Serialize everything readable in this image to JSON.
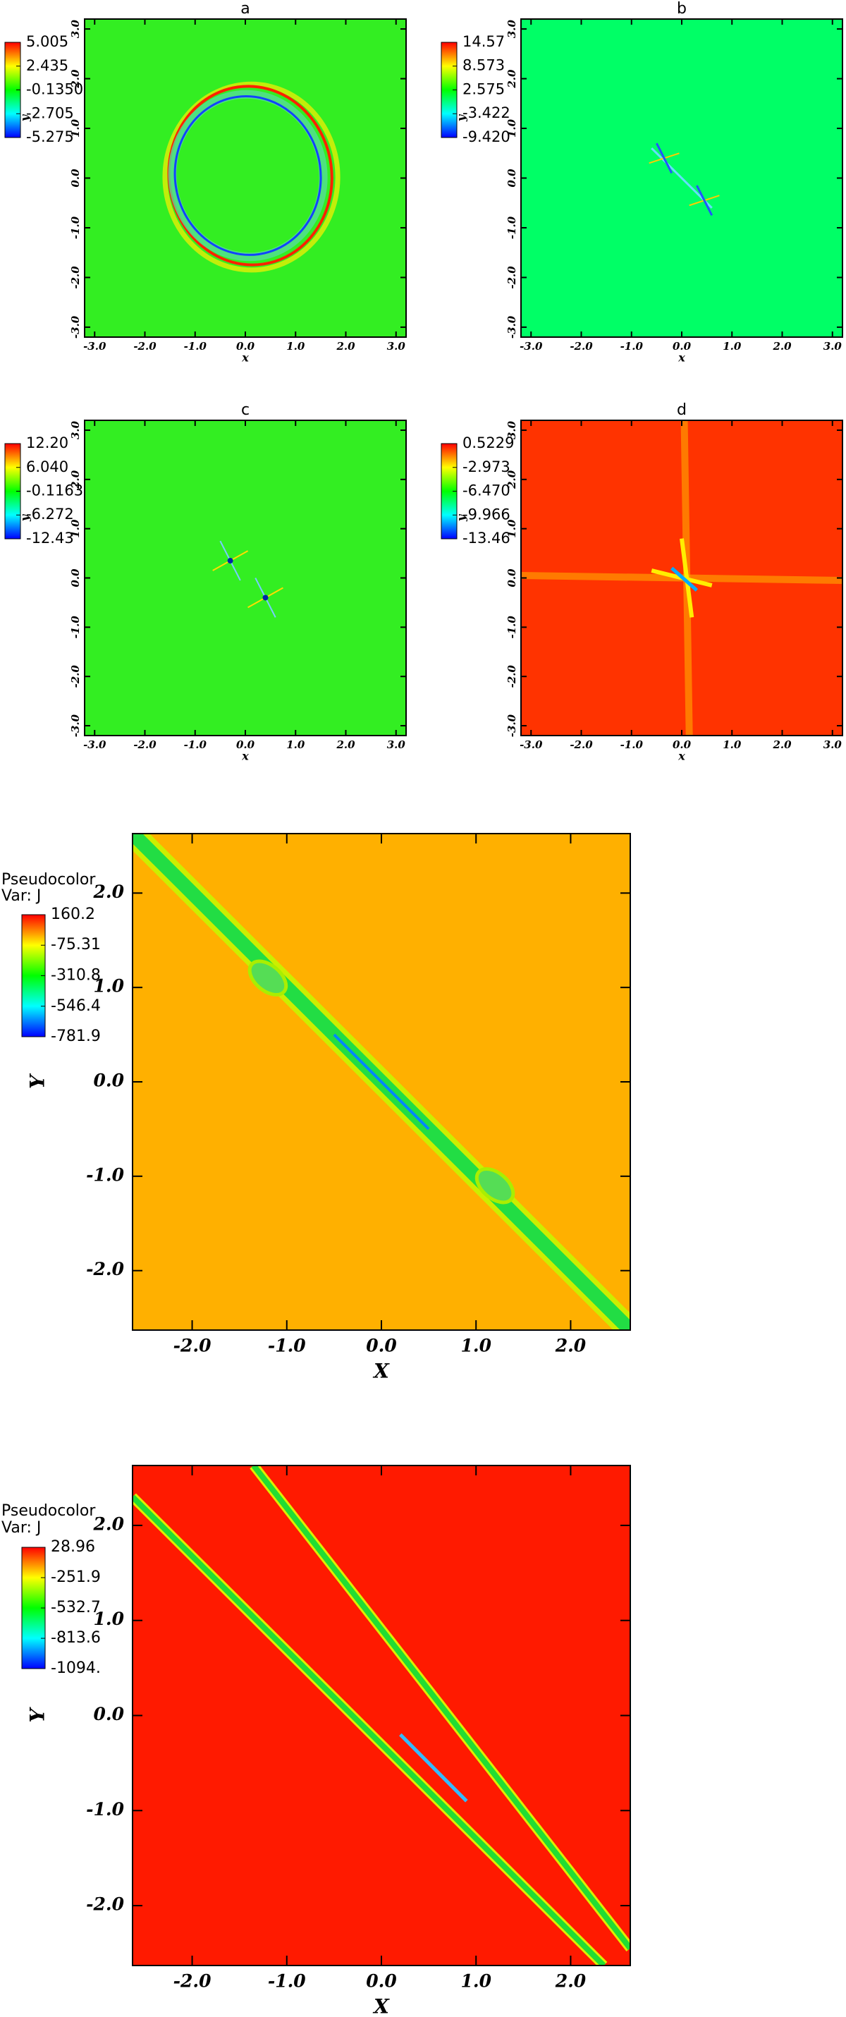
{
  "chart_data": [
    {
      "type": "heatmap",
      "title": "a",
      "x_label": "x",
      "y_label": "y",
      "color": "#33ee22",
      "xlim": [
        -3.2,
        3.2
      ],
      "ylim": [
        -3.2,
        3.2
      ],
      "xticks": [
        {
          "value": -3,
          "label": "-3.0"
        },
        {
          "value": -2,
          "label": "-2.0"
        },
        {
          "value": -1,
          "label": "-1.0"
        },
        {
          "value": 0,
          "label": "0.0"
        },
        {
          "value": 1,
          "label": "1.0"
        },
        {
          "value": 2,
          "label": "2.0"
        },
        {
          "value": 3,
          "label": "3.0"
        }
      ],
      "yticks": [
        {
          "value": -3,
          "label": "-3.0"
        },
        {
          "value": -2,
          "label": "-2.0"
        },
        {
          "value": -1,
          "label": "-1.0"
        },
        {
          "value": 0,
          "label": "0.0"
        },
        {
          "value": 1,
          "label": "1.0"
        },
        {
          "value": 2,
          "label": "2.0"
        },
        {
          "value": 3,
          "label": "3.0"
        }
      ],
      "colorbar_ticks": [
        5.005,
        2.435,
        {
          "value": -0.135,
          "label": "-0.1350"
        },
        -2.705,
        -5.275
      ]
    },
    {
      "type": "heatmap",
      "title": "b",
      "x_label": "x",
      "y_label": "y",
      "color": "#00ff66",
      "xlim": [
        -3.2,
        3.2
      ],
      "ylim": [
        -3.2,
        3.2
      ],
      "xticks": [
        {
          "value": -3,
          "label": "-3.0"
        },
        {
          "value": -2,
          "label": "-2.0"
        },
        {
          "value": -1,
          "label": "-1.0"
        },
        {
          "value": 0,
          "label": "0.0"
        },
        {
          "value": 1,
          "label": "1.0"
        },
        {
          "value": 2,
          "label": "2.0"
        },
        {
          "value": 3,
          "label": "3.0"
        }
      ],
      "yticks": [
        {
          "value": -3,
          "label": "-3.0"
        },
        {
          "value": -2,
          "label": "-2.0"
        },
        {
          "value": -1,
          "label": "-1.0"
        },
        {
          "value": 0,
          "label": "0.0"
        },
        {
          "value": 1,
          "label": "1.0"
        },
        {
          "value": 2,
          "label": "2.0"
        },
        {
          "value": 3,
          "label": "3.0"
        }
      ],
      "colorbar_ticks": [
        14.57,
        8.573,
        2.575,
        -3.422,
        {
          "value": -9.42,
          "label": "-9.420"
        }
      ]
    },
    {
      "type": "heatmap",
      "title": "c",
      "x_label": "x",
      "y_label": "y",
      "color": "#33ee22",
      "xlim": [
        -3.2,
        3.2
      ],
      "ylim": [
        -3.2,
        3.2
      ],
      "xticks": [
        {
          "value": -3,
          "label": "-3.0"
        },
        {
          "value": -2,
          "label": "-2.0"
        },
        {
          "value": -1,
          "label": "-1.0"
        },
        {
          "value": 0,
          "label": "0.0"
        },
        {
          "value": 1,
          "label": "1.0"
        },
        {
          "value": 2,
          "label": "2.0"
        },
        {
          "value": 3,
          "label": "3.0"
        }
      ],
      "yticks": [
        {
          "value": -3,
          "label": "-3.0"
        },
        {
          "value": -2,
          "label": "-2.0"
        },
        {
          "value": -1,
          "label": "-1.0"
        },
        {
          "value": 0,
          "label": "0.0"
        },
        {
          "value": 1,
          "label": "1.0"
        },
        {
          "value": 2,
          "label": "2.0"
        },
        {
          "value": 3,
          "label": "3.0"
        }
      ],
      "colorbar_ticks": [
        {
          "value": 12.2,
          "label": "12.20"
        },
        {
          "value": 6.04,
          "label": "6.040"
        },
        -0.1163,
        -6.272,
        -12.43
      ]
    },
    {
      "type": "heatmap",
      "title": "d",
      "x_label": "x",
      "y_label": "y",
      "color": "#ff3300",
      "xlim": [
        -3.2,
        3.2
      ],
      "ylim": [
        -3.2,
        3.2
      ],
      "xticks": [
        {
          "value": -3,
          "label": "-3.0"
        },
        {
          "value": -2,
          "label": "-2.0"
        },
        {
          "value": -1,
          "label": "-1.0"
        },
        {
          "value": 0,
          "label": "0.0"
        },
        {
          "value": 1,
          "label": "1.0"
        },
        {
          "value": 2,
          "label": "2.0"
        },
        {
          "value": 3,
          "label": "3.0"
        }
      ],
      "yticks": [
        {
          "value": -3,
          "label": "-3.0"
        },
        {
          "value": -2,
          "label": "-2.0"
        },
        {
          "value": -1,
          "label": "-1.0"
        },
        {
          "value": 0,
          "label": "0.0"
        },
        {
          "value": 1,
          "label": "1.0"
        },
        {
          "value": 2,
          "label": "2.0"
        },
        {
          "value": 3,
          "label": "3.0"
        }
      ],
      "colorbar_ticks": [
        0.5229,
        -2.973,
        {
          "value": -6.47,
          "label": "-6.470"
        },
        -9.966,
        -13.46
      ]
    },
    {
      "type": "heatmap",
      "legend_title": "Pseudocolor",
      "legend_subtitle": "Var: J",
      "x_label": "X",
      "y_label": "Y",
      "color": "#ffb000",
      "xlim": [
        -2.63,
        2.63
      ],
      "ylim": [
        -2.63,
        2.63
      ],
      "xticks": [
        {
          "value": -2,
          "label": "-2.0"
        },
        {
          "value": -1,
          "label": "-1.0"
        },
        {
          "value": 0,
          "label": "0.0"
        },
        {
          "value": 1,
          "label": "1.0"
        },
        {
          "value": 2,
          "label": "2.0"
        }
      ],
      "yticks": [
        {
          "value": -2,
          "label": "-2.0"
        },
        {
          "value": -1,
          "label": "-1.0"
        },
        {
          "value": 0,
          "label": "0.0"
        },
        {
          "value": 1,
          "label": "1.0"
        },
        {
          "value": 2,
          "label": "2.0"
        }
      ],
      "colorbar_ticks": [
        160.2,
        -75.31,
        -310.8,
        -546.4,
        -781.9
      ]
    },
    {
      "type": "heatmap",
      "legend_title": "Pseudocolor",
      "legend_subtitle": "Var: J",
      "x_label": "X",
      "y_label": "Y",
      "color": "#ff1a00",
      "xlim": [
        -2.63,
        2.63
      ],
      "ylim": [
        -2.63,
        2.63
      ],
      "xticks": [
        {
          "value": -2,
          "label": "-2.0"
        },
        {
          "value": -1,
          "label": "-1.0"
        },
        {
          "value": 0,
          "label": "0.0"
        },
        {
          "value": 1,
          "label": "1.0"
        },
        {
          "value": 2,
          "label": "2.0"
        }
      ],
      "yticks": [
        {
          "value": -2,
          "label": "-2.0"
        },
        {
          "value": -1,
          "label": "-1.0"
        },
        {
          "value": 0,
          "label": "0.0"
        },
        {
          "value": 1,
          "label": "1.0"
        },
        {
          "value": 2,
          "label": "2.0"
        }
      ],
      "colorbar_ticks": [
        28.96,
        -251.9,
        -532.7,
        -813.6,
        {
          "value": -1094,
          "label": "-1094."
        }
      ]
    }
  ]
}
